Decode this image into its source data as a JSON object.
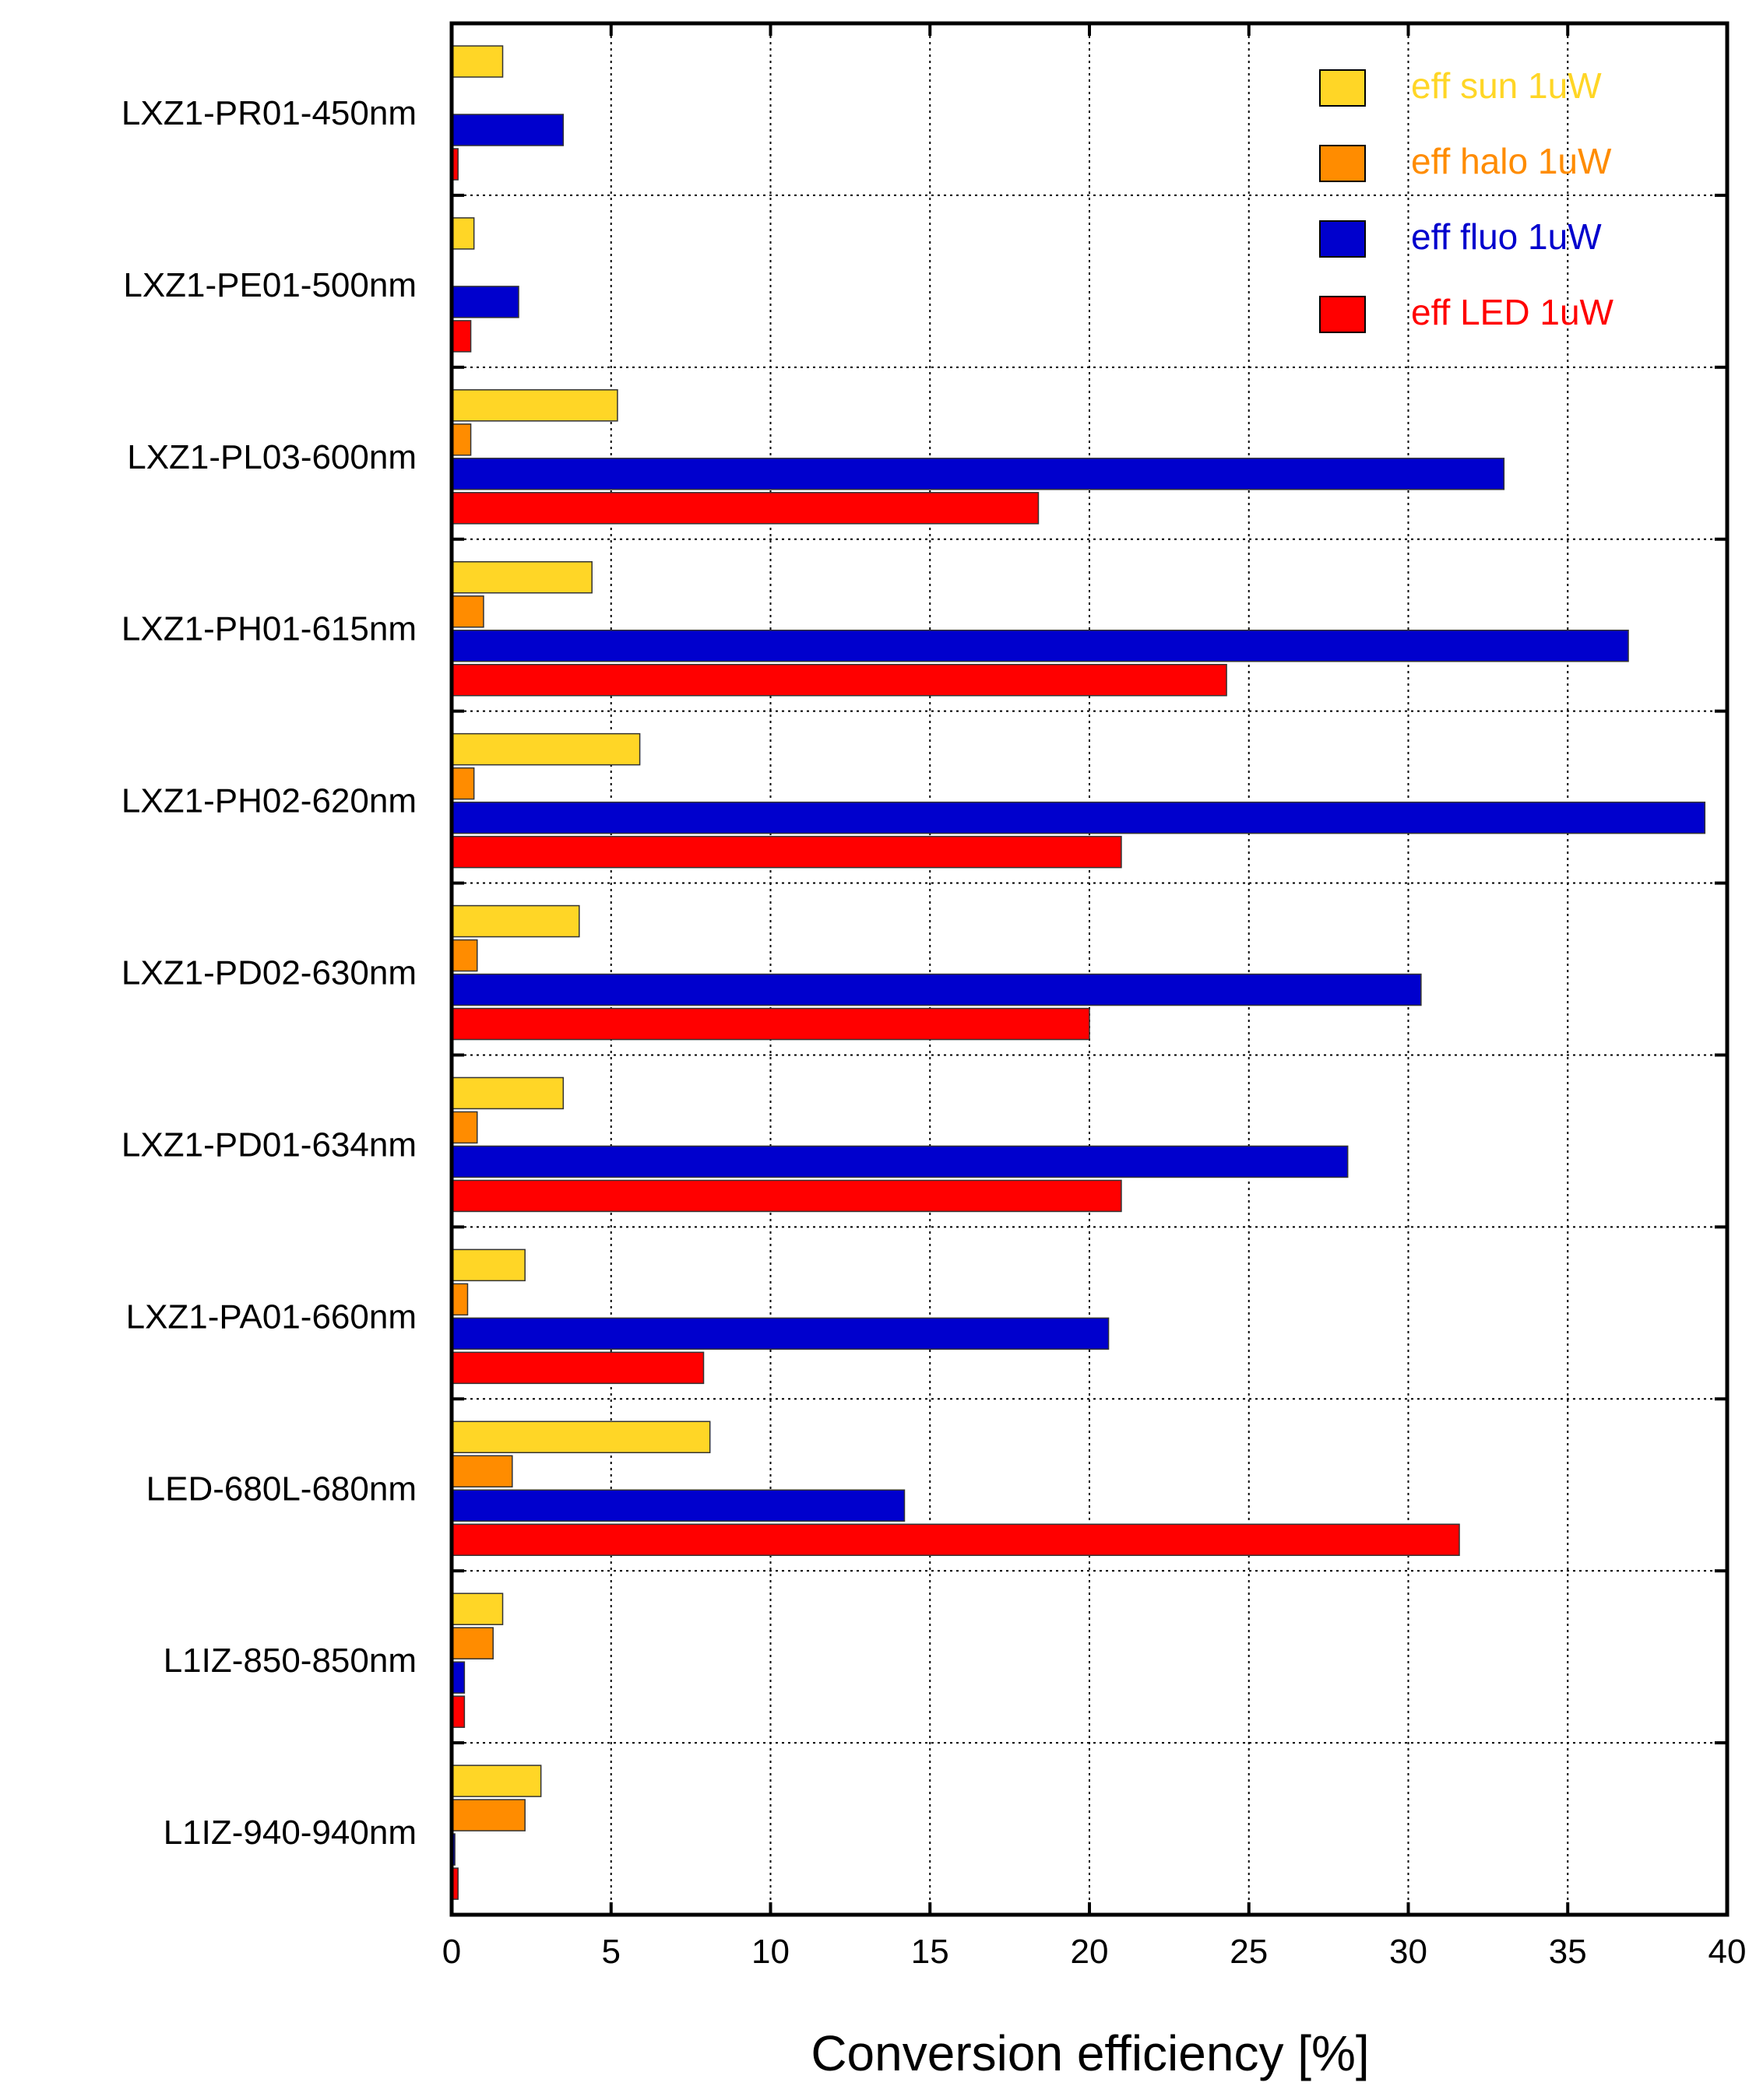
{
  "chart_data": {
    "type": "bar",
    "orientation": "horizontal",
    "title": "",
    "xlabel": "Conversion efficiency [%]",
    "ylabel": "",
    "xlim": [
      0,
      40
    ],
    "xticks": [
      0,
      5,
      10,
      15,
      20,
      25,
      30,
      35,
      40
    ],
    "xtick_labels": [
      "0",
      "5",
      "10",
      "15",
      "20",
      "25",
      "30",
      "35",
      "40"
    ],
    "grid": true,
    "legend_position": "top-right",
    "categories": [
      "LXZ1-PR01-450nm",
      "LXZ1-PE01-500nm",
      "LXZ1-PL03-600nm",
      "LXZ1-PH01-615nm",
      "LXZ1-PH02-620nm",
      "LXZ1-PD02-630nm",
      "LXZ1-PD01-634nm",
      "LXZ1-PA01-660nm",
      "LED-680L-680nm",
      "L1IZ-850-850nm",
      "L1IZ-940-940nm"
    ],
    "series": [
      {
        "name": "eff sun 1uW",
        "color": "#FFD626",
        "values": [
          1.6,
          0.7,
          5.2,
          4.4,
          5.9,
          4.0,
          3.5,
          2.3,
          8.1,
          1.6,
          2.8
        ]
      },
      {
        "name": "eff halo 1uW",
        "color": "#FF8C00",
        "values": [
          0.0,
          0.0,
          0.6,
          1.0,
          0.7,
          0.8,
          0.8,
          0.5,
          1.9,
          1.3,
          2.3
        ]
      },
      {
        "name": "eff fluo 1uW",
        "color": "#0000CD",
        "values": [
          3.5,
          2.1,
          33.0,
          36.9,
          39.3,
          30.4,
          28.1,
          20.6,
          14.2,
          0.4,
          0.1
        ]
      },
      {
        "name": "eff LED 1uW",
        "color": "#FF0000",
        "values": [
          0.2,
          0.6,
          18.4,
          24.3,
          21.0,
          20.0,
          21.0,
          7.9,
          31.6,
          0.4,
          0.2
        ]
      }
    ]
  }
}
